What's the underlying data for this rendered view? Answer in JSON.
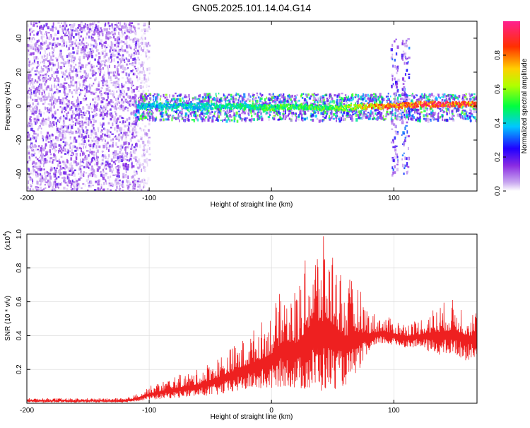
{
  "page_title": "GN05.2025.101.14.04.G14",
  "chart_data": [
    {
      "type": "heatmap",
      "title": "GN05.2025.101.14.04.G14",
      "xlabel": "Height of straight line (km)",
      "ylabel": "Frequency (Hz)",
      "xlim": [
        -200,
        168
      ],
      "ylim": [
        -50,
        50
      ],
      "x_ticks": [
        -200,
        -100,
        0,
        100
      ],
      "y_ticks": [
        -40,
        -20,
        0,
        20,
        40
      ],
      "colorbar": {
        "label": "Normalized spectral amplitude",
        "range": [
          0,
          1
        ],
        "ticks": [
          "0.0",
          "0.2",
          "0.4",
          "0.6",
          "0.8"
        ],
        "colors": [
          "#ffffff",
          "#8a2be2",
          "#0000ff",
          "#00ffff",
          "#00ff00",
          "#ffff00",
          "#ff8000",
          "#ff0000",
          "#ff1493"
        ]
      },
      "regions": [
        {
          "x_range": [
            -200,
            -110
          ],
          "freq_range": [
            -50,
            50
          ],
          "amplitude": 0.12,
          "note": "broadband noise"
        },
        {
          "x_range": [
            -110,
            -100
          ],
          "freq_range": [
            -50,
            50
          ],
          "amplitude": 0.05
        },
        {
          "x_range": [
            -112,
            168
          ],
          "freq_range": [
            -8,
            8
          ],
          "amplitude": 0.35,
          "note": "signal band"
        },
        {
          "x_range": [
            97,
            103
          ],
          "freq_range": [
            -40,
            40
          ],
          "amplitude": 0.2
        },
        {
          "x_range": [
            106,
            112
          ],
          "freq_range": [
            -40,
            40
          ],
          "amplitude": 0.2
        }
      ],
      "ridge": {
        "x": [
          -110,
          -50,
          -20,
          0,
          20,
          40,
          60,
          80,
          100,
          120,
          140,
          168
        ],
        "frequency": [
          0,
          0,
          0,
          -1,
          0,
          -1,
          -1,
          0,
          0,
          1,
          1,
          1
        ],
        "amplitude": [
          0.4,
          0.45,
          0.5,
          0.55,
          0.55,
          0.55,
          0.6,
          0.8,
          0.9,
          0.9,
          0.95,
          0.85
        ]
      }
    },
    {
      "type": "line",
      "xlabel": "Height of straight line (km)",
      "ylabel": "SNR (10 * v/v)",
      "y_scale_label": "(x10",
      "y_scale_exp": "4",
      "y_scale_close": ")",
      "xlim": [
        -200,
        168
      ],
      "ylim": [
        0,
        1.0
      ],
      "x_ticks": [
        -200,
        -100,
        0,
        100
      ],
      "y_ticks": [
        "0.2",
        "0.4",
        "0.6",
        "0.8",
        "1.0"
      ],
      "series": [
        {
          "color": "#ee2020",
          "envelope_x": [
            -200,
            -120,
            -112,
            -100,
            -80,
            -60,
            -40,
            -20,
            0,
            10,
            20,
            30,
            40,
            50,
            60,
            70,
            80,
            90,
            100,
            110,
            120,
            130,
            140,
            150,
            160,
            168
          ],
          "envelope_low": [
            0.005,
            0.005,
            0.01,
            0.02,
            0.03,
            0.04,
            0.05,
            0.08,
            0.08,
            0.1,
            0.08,
            0.07,
            0.06,
            0.08,
            0.1,
            0.18,
            0.3,
            0.35,
            0.34,
            0.33,
            0.33,
            0.3,
            0.28,
            0.28,
            0.25,
            0.28
          ],
          "envelope_high": [
            0.03,
            0.03,
            0.05,
            0.1,
            0.16,
            0.2,
            0.3,
            0.4,
            0.55,
            0.7,
            0.68,
            0.9,
            1.0,
            0.95,
            0.75,
            0.72,
            0.55,
            0.52,
            0.5,
            0.48,
            0.5,
            0.56,
            0.6,
            0.62,
            0.58,
            0.55
          ]
        }
      ]
    }
  ]
}
